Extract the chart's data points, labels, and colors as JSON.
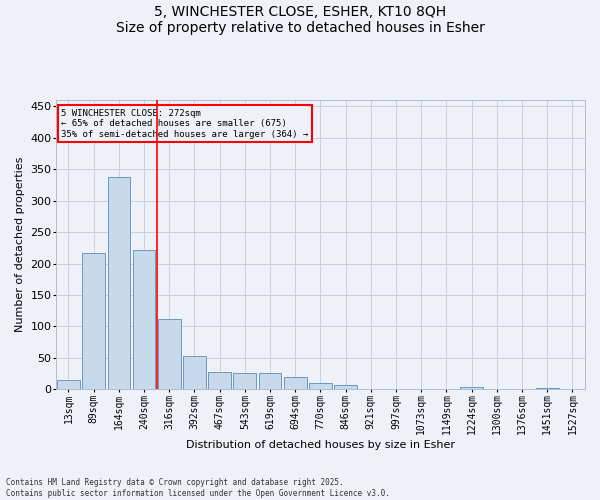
{
  "title_line1": "5, WINCHESTER CLOSE, ESHER, KT10 8QH",
  "title_line2": "Size of property relative to detached houses in Esher",
  "xlabel": "Distribution of detached houses by size in Esher",
  "ylabel": "Number of detached properties",
  "categories": [
    "13sqm",
    "89sqm",
    "164sqm",
    "240sqm",
    "316sqm",
    "392sqm",
    "467sqm",
    "543sqm",
    "619sqm",
    "694sqm",
    "770sqm",
    "846sqm",
    "921sqm",
    "997sqm",
    "1073sqm",
    "1149sqm",
    "1224sqm",
    "1300sqm",
    "1376sqm",
    "1451sqm",
    "1527sqm"
  ],
  "values": [
    15,
    216,
    338,
    222,
    112,
    53,
    27,
    26,
    25,
    19,
    10,
    6,
    0,
    0,
    0,
    0,
    4,
    0,
    0,
    2,
    0
  ],
  "bar_color": "#c9d9ec",
  "bar_edge_color": "#5b8db8",
  "grid_color": "#c8d0e0",
  "background_color": "#eef2f8",
  "annotation_box_text": "5 WINCHESTER CLOSE: 272sqm\n← 65% of detached houses are smaller (675)\n35% of semi-detached houses are larger (364) →",
  "red_line_x": 3.5,
  "ylim": [
    0,
    460
  ],
  "yticks": [
    0,
    50,
    100,
    150,
    200,
    250,
    300,
    350,
    400,
    450
  ],
  "footnote": "Contains HM Land Registry data © Crown copyright and database right 2025.\nContains public sector information licensed under the Open Government Licence v3.0.",
  "title_fontsize": 10,
  "label_fontsize": 8,
  "tick_fontsize": 7
}
